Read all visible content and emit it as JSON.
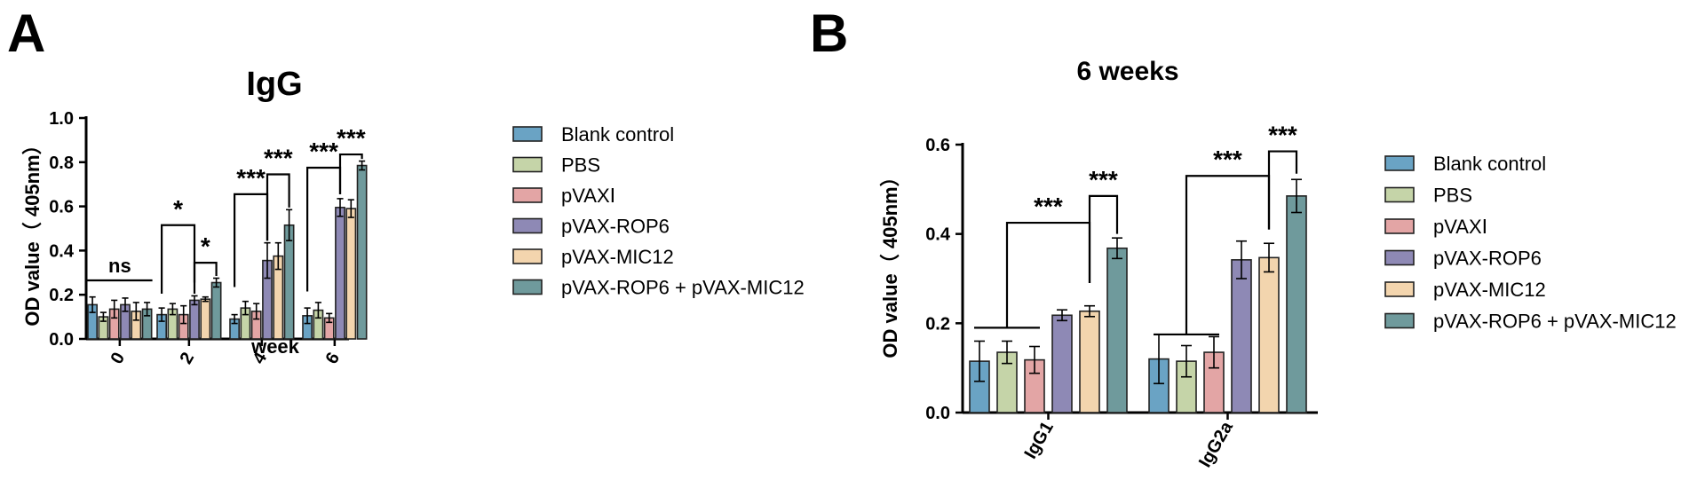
{
  "panels": [
    {
      "letter": "A"
    },
    {
      "letter": "B"
    }
  ],
  "chart_data": [
    {
      "type": "bar",
      "title": "IgG",
      "xlabel": "week",
      "ylabel": "OD value（ 405nm）",
      "ylim": [
        0,
        1.0
      ],
      "yticks": [
        "0.0",
        "0.2",
        "0.4",
        "0.6",
        "0.8",
        "1.0"
      ],
      "categories": [
        "0",
        "2",
        "4",
        "6"
      ],
      "legend": "right",
      "grid": false,
      "series": [
        {
          "name": "Blank control",
          "color": "#6aa3c4",
          "values": [
            0.155,
            0.11,
            0.09,
            0.105
          ],
          "errors": [
            0.035,
            0.03,
            0.02,
            0.035
          ]
        },
        {
          "name": "PBS",
          "color": "#c5d4a8",
          "values": [
            0.1,
            0.135,
            0.14,
            0.13
          ],
          "errors": [
            0.02,
            0.025,
            0.03,
            0.035
          ]
        },
        {
          "name": "pVAXⅠ",
          "color": "#e3a5a5",
          "values": [
            0.135,
            0.11,
            0.125,
            0.095
          ],
          "errors": [
            0.04,
            0.04,
            0.035,
            0.02
          ]
        },
        {
          "name": "pVAX-ROP6",
          "color": "#8e89b5",
          "values": [
            0.155,
            0.175,
            0.355,
            0.595
          ],
          "errors": [
            0.03,
            0.02,
            0.08,
            0.04
          ]
        },
        {
          "name": "pVAX-MIC12",
          "color": "#f3d5ae",
          "values": [
            0.125,
            0.18,
            0.375,
            0.59
          ],
          "errors": [
            0.04,
            0.01,
            0.06,
            0.04
          ]
        },
        {
          "name": "pVAX-ROP6 + pVAX-MIC12",
          "color": "#6f9a9c",
          "values": [
            0.135,
            0.255,
            0.515,
            0.785
          ],
          "errors": [
            0.03,
            0.02,
            0.07,
            0.02
          ]
        }
      ],
      "annotations": [
        "ns",
        "*",
        "*",
        "***",
        "***",
        "***",
        "***"
      ]
    },
    {
      "type": "bar",
      "title": "6 weeks",
      "xlabel": "",
      "ylabel": "OD value（ 405nm）",
      "ylim": [
        0,
        0.6
      ],
      "yticks": [
        "0.0",
        "0.2",
        "0.4",
        "0.6"
      ],
      "categories": [
        "IgG1",
        "IgG2a"
      ],
      "legend": "right",
      "grid": false,
      "series": [
        {
          "name": "Blank control",
          "color": "#6aa3c4",
          "values": [
            0.115,
            0.12
          ],
          "errors": [
            0.045,
            0.055
          ]
        },
        {
          "name": "PBS",
          "color": "#c5d4a8",
          "values": [
            0.135,
            0.115
          ],
          "errors": [
            0.025,
            0.035
          ]
        },
        {
          "name": "pVAXⅠ",
          "color": "#e3a5a5",
          "values": [
            0.118,
            0.135
          ],
          "errors": [
            0.03,
            0.035
          ]
        },
        {
          "name": "pVAX-ROP6",
          "color": "#8e89b5",
          "values": [
            0.218,
            0.342
          ],
          "errors": [
            0.012,
            0.042
          ]
        },
        {
          "name": "pVAX-MIC12",
          "color": "#f3d5ae",
          "values": [
            0.227,
            0.347
          ],
          "errors": [
            0.012,
            0.032
          ]
        },
        {
          "name": "pVAX-ROP6 + pVAX-MIC12",
          "color": "#6f9a9c",
          "values": [
            0.368,
            0.485
          ],
          "errors": [
            0.023,
            0.037
          ]
        }
      ],
      "annotations": [
        "***",
        "***",
        "***",
        "***"
      ]
    }
  ]
}
